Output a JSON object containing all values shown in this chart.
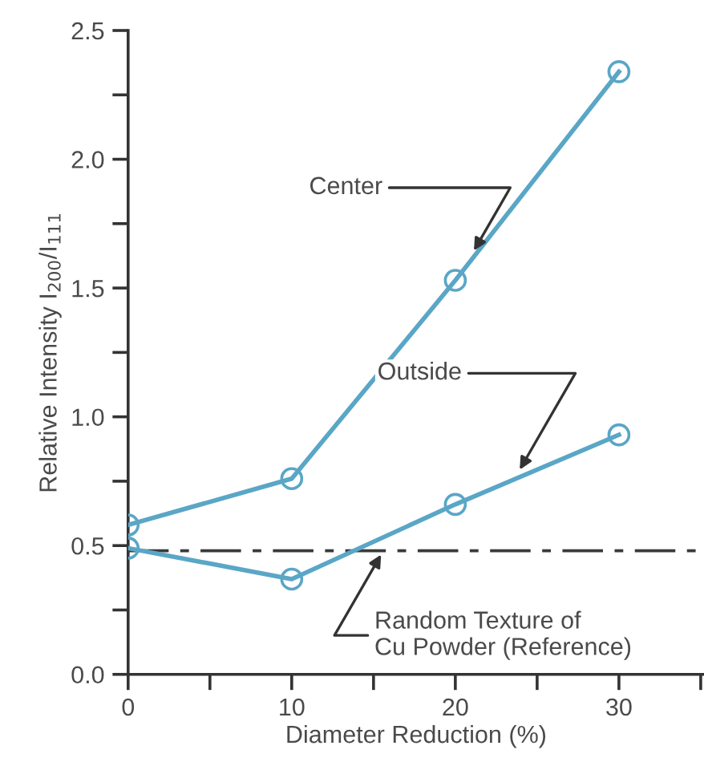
{
  "chart_data": {
    "type": "line",
    "xlabel": "Diameter Reduction (%)",
    "ylabel": "Relative Intensity I$_{200}$/I$_{111}$",
    "x": [
      0,
      10,
      20,
      30
    ],
    "series": [
      {
        "color": "#5aa6c6",
        "values": [
          0.58,
          0.76,
          1.53,
          2.34
        ]
      },
      {
        "color": "#5aa6c6",
        "values": [
          0.49,
          0.37,
          0.66,
          0.93
        ]
      }
    ],
    "marker": "circle",
    "line_style": "solid",
    "grid": false,
    "legend": false,
    "xlim": [
      0,
      35.2
    ],
    "ylim": [
      0,
      2.5
    ],
    "xticks": [
      0,
      {
        "value": 5,
        "label": null
      },
      10,
      {
        "value": 15,
        "label": null
      },
      20,
      {
        "value": 25,
        "label": null
      },
      30,
      {
        "value": 35,
        "label": null
      }
    ],
    "yticks": [
      "0.0",
      {
        "value": 0.25,
        "label": null
      },
      {
        "value": 0.5,
        "label": "0.5"
      },
      {
        "value": 0.75,
        "label": null
      },
      {
        "value": 1.0,
        "label": "1.0"
      },
      {
        "value": 1.25,
        "label": null
      },
      {
        "value": 1.5,
        "label": "1.5"
      },
      {
        "value": 1.75,
        "label": null
      },
      {
        "value": 2.0,
        "label": "2.0"
      },
      {
        "value": 2.25,
        "label": null
      },
      {
        "value": 2.5,
        "label": "2.5"
      }
    ],
    "ref_lines": [
      {
        "axis": "y",
        "value": 0.48,
        "color": "#3a3a3a",
        "line_style": "dashdot"
      }
    ],
    "annotations": [
      {
        "text": "Center",
        "x": 21,
        "y": 1.63
      },
      {
        "text": "Outside",
        "x": 23.8,
        "y": 0.78
      },
      {
        "text": "Random Texture of\nCu Powder (Reference)",
        "x": 15.6,
        "y": 0.48
      }
    ]
  }
}
